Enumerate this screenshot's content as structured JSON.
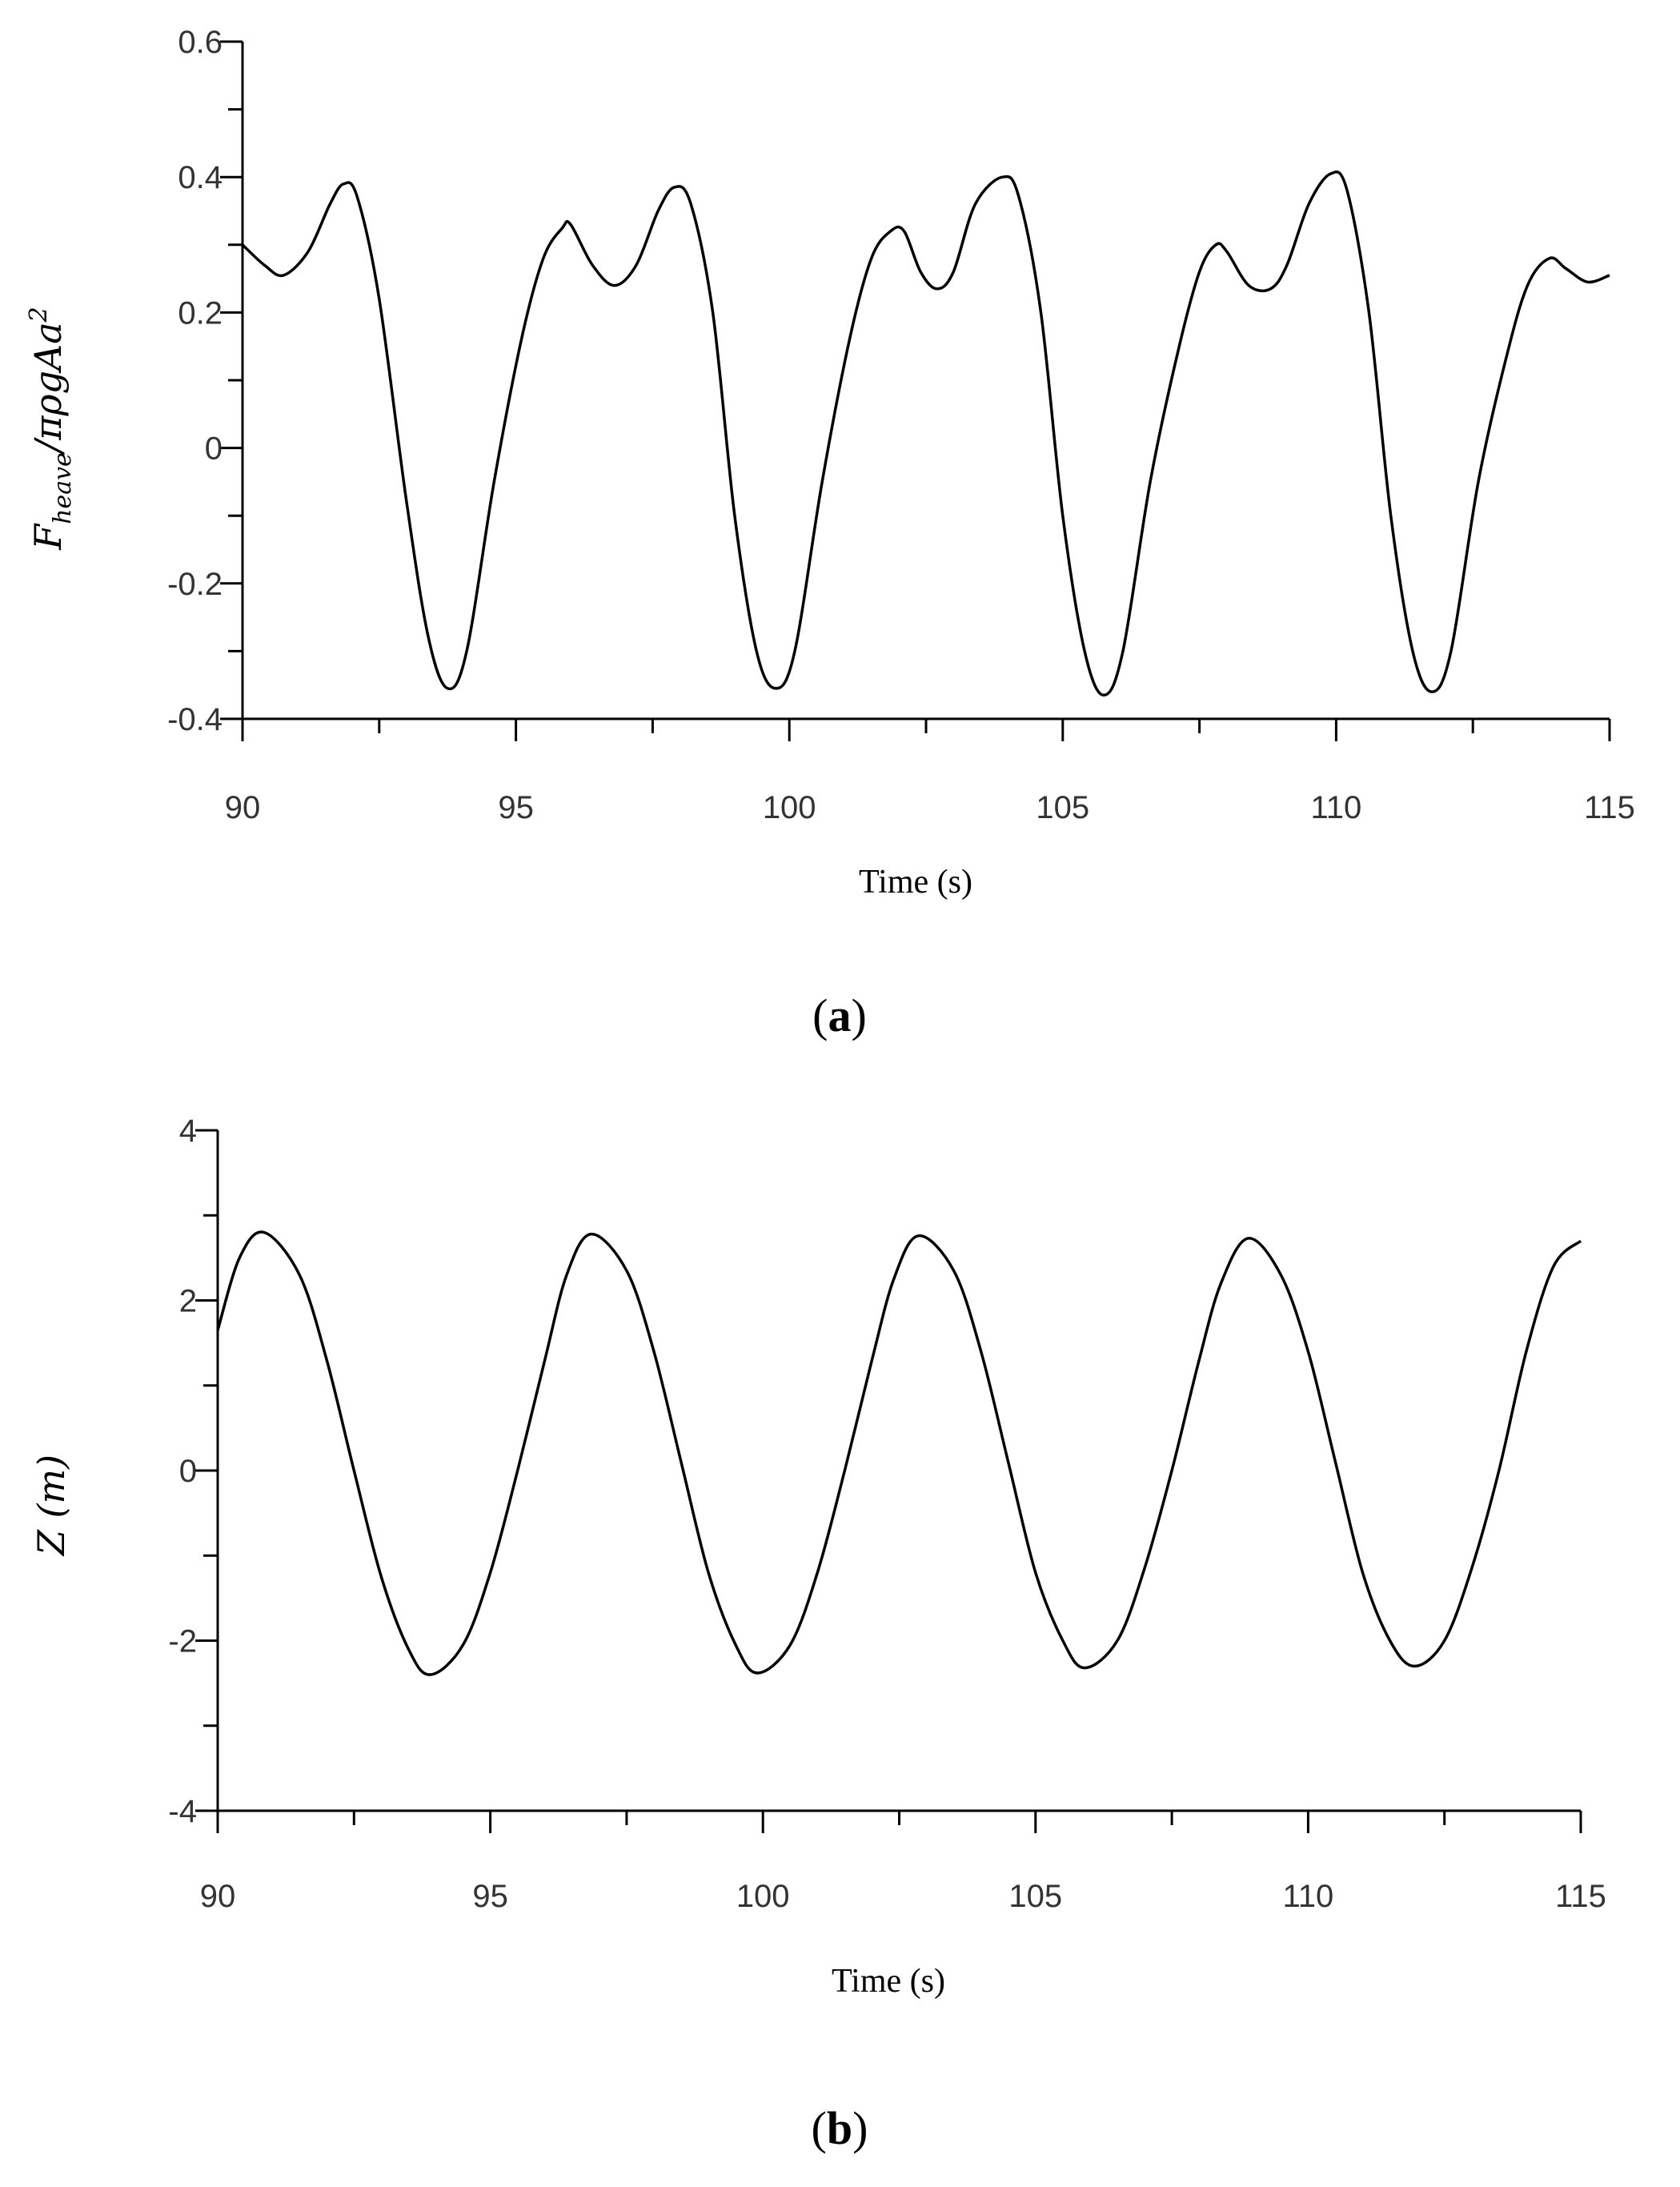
{
  "chart_data": [
    {
      "type": "line",
      "panel_label": {
        "open": "(",
        "letter": "a",
        "close": ")"
      },
      "xlabel": "Time (s)",
      "ylabel": {
        "main": "F",
        "sub": "heave",
        "rest": "/πρgAa",
        "sup": "2"
      },
      "xlim": [
        90,
        115
      ],
      "ylim": [
        -0.4,
        0.6
      ],
      "xticks": [
        90,
        95,
        100,
        105,
        110,
        115
      ],
      "xtick_labels": [
        "90",
        "95",
        "100",
        "105",
        "110",
        "115"
      ],
      "yticks": [
        -0.4,
        -0.2,
        0,
        0.2,
        0.4,
        0.6
      ],
      "ytick_labels": [
        "-0.4",
        "-0.2",
        "0",
        "0.2",
        "0.4",
        "0.6"
      ],
      "grid": false,
      "series": [
        {
          "x": [
            90.0,
            90.4,
            90.75,
            91.2,
            91.6,
            91.85,
            92.1,
            92.5,
            93.0,
            93.4,
            93.75,
            94.1,
            94.6,
            95.1,
            95.5,
            95.85,
            96.0,
            96.4,
            96.8,
            97.2,
            97.6,
            97.9,
            98.2,
            98.6,
            99.0,
            99.4,
            99.75,
            100.1,
            100.6,
            101.1,
            101.5,
            101.85,
            102.1,
            102.4,
            102.7,
            103.0,
            103.4,
            103.9,
            104.2,
            104.6,
            105.0,
            105.4,
            105.75,
            106.1,
            106.6,
            107.1,
            107.5,
            107.8,
            108.0,
            108.4,
            108.8,
            109.1,
            109.5,
            109.9,
            110.2,
            110.6,
            111.0,
            111.4,
            111.75,
            112.1,
            112.6,
            113.1,
            113.5,
            113.9,
            114.2,
            114.6,
            115.0
          ],
          "y": [
            0.3,
            0.27,
            0.255,
            0.29,
            0.36,
            0.39,
            0.37,
            0.22,
            -0.08,
            -0.28,
            -0.355,
            -0.3,
            -0.05,
            0.16,
            0.28,
            0.325,
            0.33,
            0.27,
            0.24,
            0.27,
            0.35,
            0.385,
            0.36,
            0.2,
            -0.1,
            -0.3,
            -0.355,
            -0.3,
            -0.05,
            0.16,
            0.28,
            0.32,
            0.32,
            0.26,
            0.235,
            0.26,
            0.36,
            0.4,
            0.37,
            0.2,
            -0.1,
            -0.3,
            -0.365,
            -0.3,
            -0.05,
            0.14,
            0.26,
            0.3,
            0.29,
            0.24,
            0.235,
            0.27,
            0.36,
            0.405,
            0.38,
            0.2,
            -0.1,
            -0.3,
            -0.36,
            -0.3,
            -0.05,
            0.13,
            0.24,
            0.28,
            0.265,
            0.245,
            0.255
          ]
        }
      ]
    },
    {
      "type": "line",
      "panel_label": {
        "open": "(",
        "letter": "b",
        "close": ")"
      },
      "xlabel": "Time (s)",
      "ylabel": {
        "main": "Z (m)"
      },
      "xlim": [
        90,
        115
      ],
      "ylim": [
        -4,
        4
      ],
      "xticks": [
        90,
        95,
        100,
        105,
        110,
        115
      ],
      "xtick_labels": [
        "90",
        "95",
        "100",
        "105",
        "110",
        "115"
      ],
      "yticks": [
        -4,
        -2,
        0,
        2,
        4
      ],
      "ytick_labels": [
        "-4",
        "-2",
        "0",
        "2",
        "4"
      ],
      "grid": false,
      "series": [
        {
          "x": [
            90.0,
            90.4,
            90.85,
            91.5,
            92.0,
            92.5,
            93.0,
            93.5,
            93.9,
            94.5,
            95.0,
            95.5,
            96.0,
            96.4,
            96.85,
            97.5,
            98.0,
            98.5,
            99.0,
            99.5,
            99.9,
            100.5,
            101.0,
            101.5,
            102.0,
            102.4,
            102.85,
            103.5,
            104.0,
            104.5,
            105.0,
            105.5,
            105.9,
            106.5,
            107.0,
            107.5,
            108.0,
            108.4,
            108.9,
            109.5,
            110.0,
            110.5,
            111.0,
            111.5,
            111.95,
            112.5,
            113.0,
            113.5,
            114.0,
            114.5,
            115.0
          ],
          "y": [
            1.65,
            2.5,
            2.8,
            2.3,
            1.3,
            0.0,
            -1.25,
            -2.1,
            -2.4,
            -2.05,
            -1.2,
            0.0,
            1.3,
            2.3,
            2.78,
            2.35,
            1.4,
            0.1,
            -1.2,
            -2.05,
            -2.38,
            -2.05,
            -1.2,
            0.0,
            1.3,
            2.25,
            2.76,
            2.35,
            1.4,
            0.1,
            -1.2,
            -2.0,
            -2.32,
            -2.0,
            -1.15,
            0.0,
            1.3,
            2.2,
            2.73,
            2.3,
            1.4,
            0.1,
            -1.2,
            -2.0,
            -2.3,
            -2.0,
            -1.15,
            0.0,
            1.4,
            2.4,
            2.7
          ]
        }
      ]
    }
  ]
}
